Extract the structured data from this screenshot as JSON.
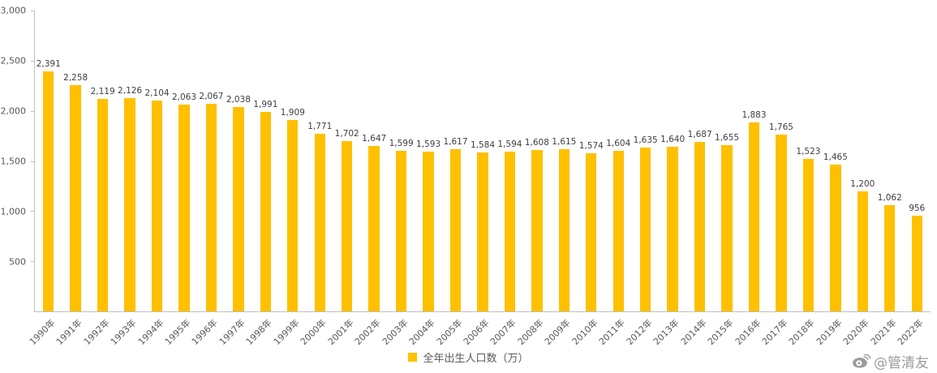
{
  "chart_data": {
    "type": "bar",
    "categories": [
      "1990年",
      "1991年",
      "1992年",
      "1993年",
      "1994年",
      "1995年",
      "1996年",
      "1997年",
      "1998年",
      "1999年",
      "2000年",
      "2001年",
      "2002年",
      "2003年",
      "2004年",
      "2005年",
      "2006年",
      "2007年",
      "2008年",
      "2009年",
      "2010年",
      "2011年",
      "2012年",
      "2013年",
      "2014年",
      "2015年",
      "2016年",
      "2017年",
      "2018年",
      "2019年",
      "2020年",
      "2021年",
      "2022年"
    ],
    "values": [
      2391,
      2258,
      2119,
      2126,
      2104,
      2063,
      2067,
      2038,
      1991,
      1909,
      1771,
      1702,
      1647,
      1599,
      1593,
      1617,
      1584,
      1594,
      1608,
      1615,
      1574,
      1604,
      1635,
      1640,
      1687,
      1655,
      1883,
      1765,
      1523,
      1465,
      1200,
      1062,
      956
    ],
    "ylim": [
      0,
      3000
    ],
    "ytick_values": [
      3000,
      2500,
      2000,
      1500,
      1000,
      500
    ],
    "ytick_labels": [
      "3,000",
      "2,500",
      "2,000",
      "1,500",
      "1,000",
      "500"
    ],
    "bar_color": "#FFC000",
    "grid": false,
    "legend_label": "全年出生人口数（万）",
    "legend_position": "bottom"
  },
  "watermark": {
    "icon": "weibo-icon",
    "handle": "@管清友"
  }
}
